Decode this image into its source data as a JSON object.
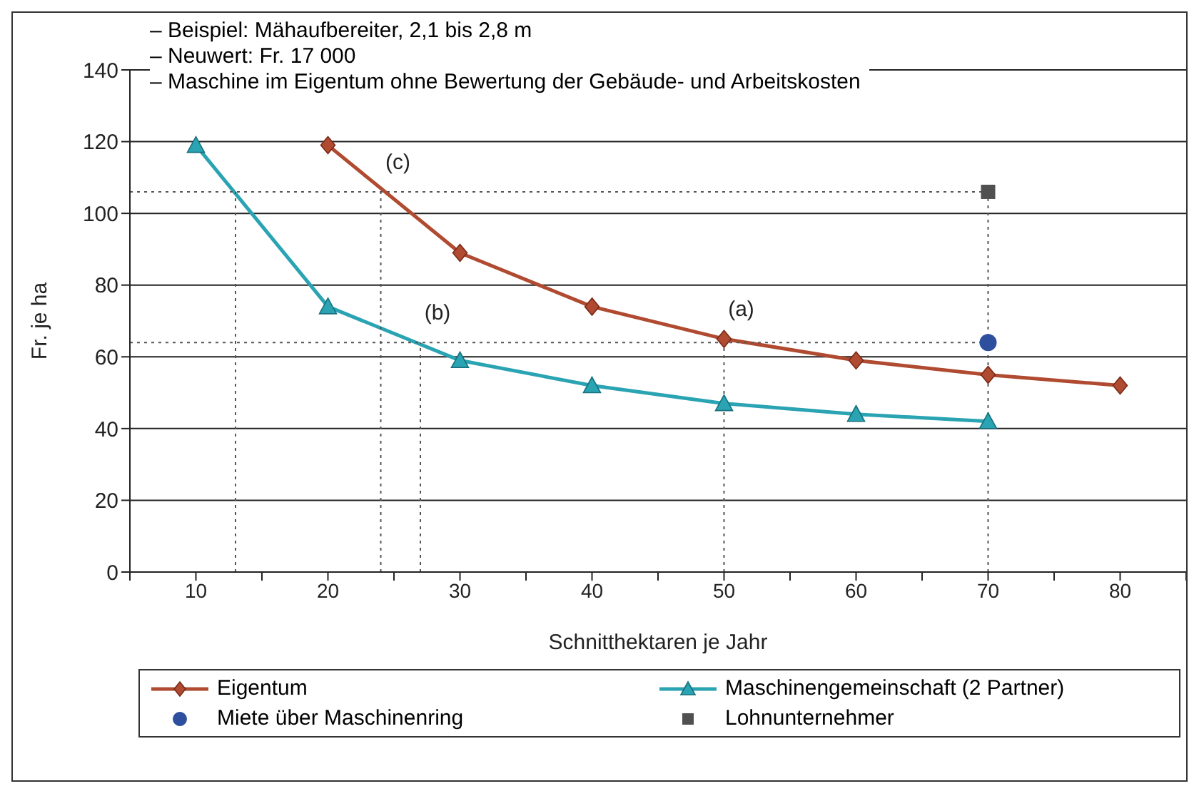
{
  "chart_data": {
    "type": "line",
    "xlabel": "Schnitthektaren je Jahr",
    "ylabel": "Fr. je ha",
    "xlim": [
      5,
      85
    ],
    "xticks": [
      {
        "value": 5,
        "label": null
      },
      10,
      {
        "value": 15,
        "label": null
      },
      20,
      {
        "value": 25,
        "label": null
      },
      30,
      {
        "value": 35,
        "label": null
      },
      40,
      {
        "value": 45,
        "label": null
      },
      50,
      {
        "value": 55,
        "label": null
      },
      60,
      {
        "value": 65,
        "label": null
      },
      70,
      {
        "value": 75,
        "label": null
      },
      80,
      {
        "value": 85,
        "label": null
      }
    ],
    "ylim": [
      0,
      140
    ],
    "yticks": [
      0,
      20,
      40,
      60,
      80,
      100,
      120,
      140
    ],
    "grid": "y",
    "legend": "bottom",
    "series": [
      {
        "name": "Eigentum",
        "type": "line",
        "color": "#b04a30",
        "marker": "diamond",
        "line_style": "solid",
        "x": [
          20,
          30,
          40,
          50,
          60,
          70,
          80
        ],
        "values": [
          119,
          89,
          74,
          65,
          59,
          55,
          52
        ]
      },
      {
        "name": "Maschinengemeinschaft (2 Partner)",
        "type": "line",
        "color": "#2aa3b3",
        "marker": "triangle",
        "line_style": "solid",
        "x": [
          10,
          20,
          30,
          40,
          50,
          60,
          70
        ],
        "values": [
          119,
          74,
          59,
          52,
          47,
          44,
          42
        ]
      },
      {
        "name": "Miete über Maschinenring",
        "type": "scatter",
        "color": "#2d4f9e",
        "marker": "circle",
        "x": [
          70
        ],
        "values": [
          64
        ]
      },
      {
        "name": "Lohnunternehmer",
        "type": "scatter",
        "color": "#505050",
        "marker": "square",
        "x": [
          70
        ],
        "values": [
          106
        ]
      },
      {
        "type": "line",
        "color": "#555555",
        "marker": "none",
        "line_style": "dotted",
        "x": [
          5,
          70
        ],
        "values": [
          106,
          106
        ]
      },
      {
        "type": "line",
        "color": "#555555",
        "marker": "none",
        "line_style": "dotted",
        "x": [
          5,
          70
        ],
        "values": [
          64,
          64
        ]
      },
      {
        "type": "line",
        "color": "#555555",
        "marker": "none",
        "line_style": "dotted",
        "x": [
          13,
          13
        ],
        "values": [
          0,
          106
        ]
      },
      {
        "type": "line",
        "color": "#555555",
        "marker": "none",
        "line_style": "dotted",
        "x": [
          24,
          24
        ],
        "values": [
          0,
          106
        ]
      },
      {
        "type": "line",
        "color": "#555555",
        "marker": "none",
        "line_style": "dotted",
        "x": [
          27,
          27
        ],
        "values": [
          0,
          64
        ]
      },
      {
        "type": "line",
        "color": "#555555",
        "marker": "none",
        "line_style": "dotted",
        "x": [
          50,
          50
        ],
        "values": [
          0,
          65
        ]
      },
      {
        "type": "line",
        "color": "#555555",
        "marker": "none",
        "line_style": "dotted",
        "x": [
          70,
          70
        ],
        "values": [
          0,
          106
        ]
      }
    ],
    "annotations": [
      "– Beispiel: Mähaufbereiter, 2,1 bis 2,8 m",
      "– Neuwert: Fr. 17 000",
      "– Maschine im Eigentum ohne Bewertung der Gebäude- und Arbeitskosten",
      {
        "text": "(c)",
        "x": 24,
        "y": 106
      },
      {
        "text": "(b)",
        "x": 27,
        "y": 64
      },
      {
        "text": "(a)",
        "x": 50,
        "y": 65
      }
    ]
  }
}
